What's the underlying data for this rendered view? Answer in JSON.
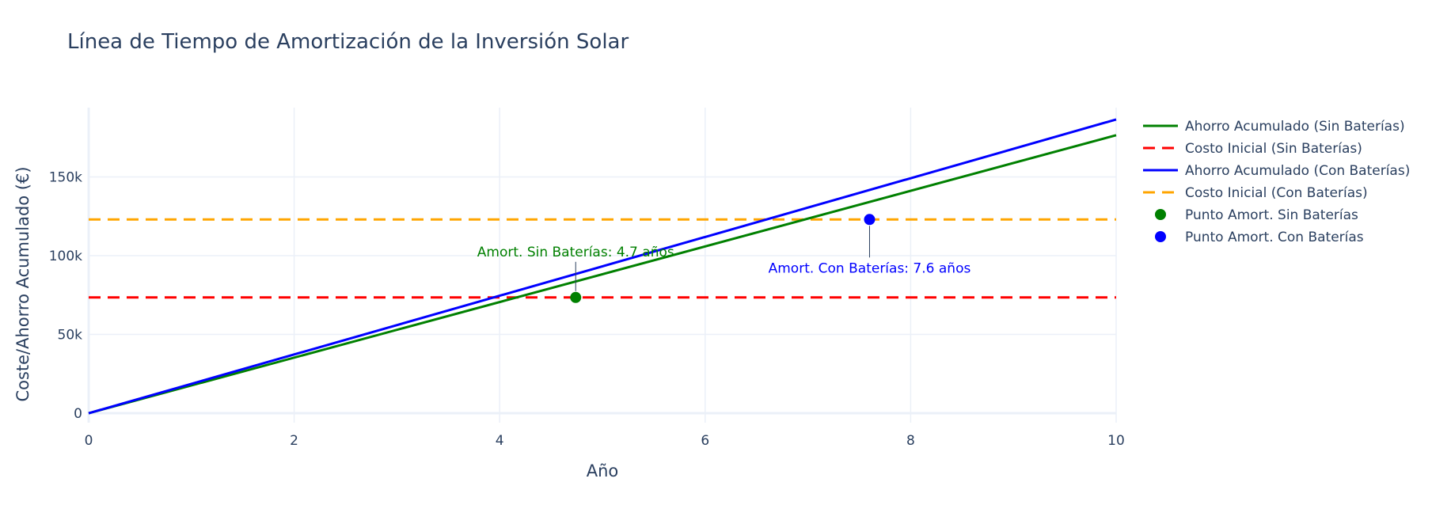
{
  "chart_data": {
    "type": "line",
    "title": "Línea de Tiempo de Amortización de la Inversión Solar",
    "xlabel": "Año",
    "ylabel": "Coste/Ahorro Acumulado (€)",
    "xlim": [
      0,
      10
    ],
    "ylim": [
      -6000,
      194000
    ],
    "x_ticks": [
      0,
      2,
      4,
      6,
      8,
      10
    ],
    "y_ticks": [
      0,
      50000,
      100000,
      150000
    ],
    "y_tick_labels": [
      "0",
      "50k",
      "100k",
      "150k"
    ],
    "grid": true,
    "legend_position": "right",
    "series": [
      {
        "name": "Ahorro Acumulado (Sin Baterías)",
        "kind": "line",
        "dash": "solid",
        "color": "#008000",
        "x": [
          0,
          10
        ],
        "y": [
          0,
          176500
        ]
      },
      {
        "name": "Costo Inicial (Sin Baterías)",
        "kind": "line",
        "dash": "dash",
        "color": "#ff0000",
        "x": [
          0,
          10
        ],
        "y": [
          73500,
          73500
        ]
      },
      {
        "name": "Ahorro Acumulado (Con Baterías)",
        "kind": "line",
        "dash": "solid",
        "color": "#0000ff",
        "x": [
          0,
          10
        ],
        "y": [
          0,
          186500
        ]
      },
      {
        "name": "Costo Inicial (Con Baterías)",
        "kind": "line",
        "dash": "dash",
        "color": "#ffa500",
        "x": [
          0,
          10
        ],
        "y": [
          123000,
          123000
        ]
      },
      {
        "name": "Punto Amort. Sin Baterías",
        "kind": "marker",
        "color": "#008000",
        "x": [
          4.74
        ],
        "y": [
          73500
        ]
      },
      {
        "name": "Punto Amort. Con Baterías",
        "kind": "marker",
        "color": "#0000ff",
        "x": [
          7.6
        ],
        "y": [
          123000
        ]
      }
    ],
    "annotations": [
      {
        "text": "Amort. Sin Baterías: 4.7 años",
        "x": 4.74,
        "y": 73500,
        "color": "#008000",
        "placement": "above"
      },
      {
        "text": "Amort. Con Baterías: 7.6 años",
        "x": 7.6,
        "y": 123000,
        "color": "#0000ff",
        "placement": "below"
      }
    ]
  }
}
